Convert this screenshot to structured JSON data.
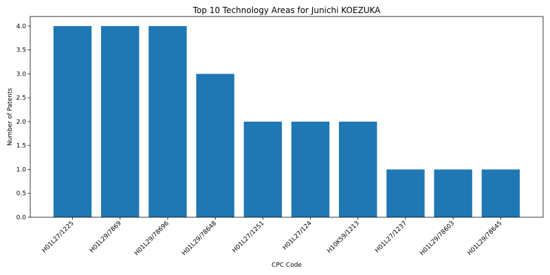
{
  "chart_data": {
    "type": "bar",
    "title": "Top 10 Technology Areas for Junichi KOEZUKA",
    "xlabel": "CPC Code",
    "ylabel": "Number of Patents",
    "categories": [
      "H01L27/1225",
      "H01L29/7869",
      "H01L29/78696",
      "H01L29/78648",
      "H01L27/1251",
      "H01L27/124",
      "H10K59/1213",
      "H01L27/1237",
      "H01L29/78603",
      "H01L29/78645"
    ],
    "values": [
      4,
      4,
      4,
      3,
      2,
      2,
      2,
      1,
      1,
      1
    ],
    "ylim": [
      0,
      4.2
    ],
    "yticks": [
      "0.0",
      "0.5",
      "1.0",
      "1.5",
      "2.0",
      "2.5",
      "3.0",
      "3.5",
      "4.0"
    ],
    "bar_color": "#1f77b4",
    "grid": false
  }
}
